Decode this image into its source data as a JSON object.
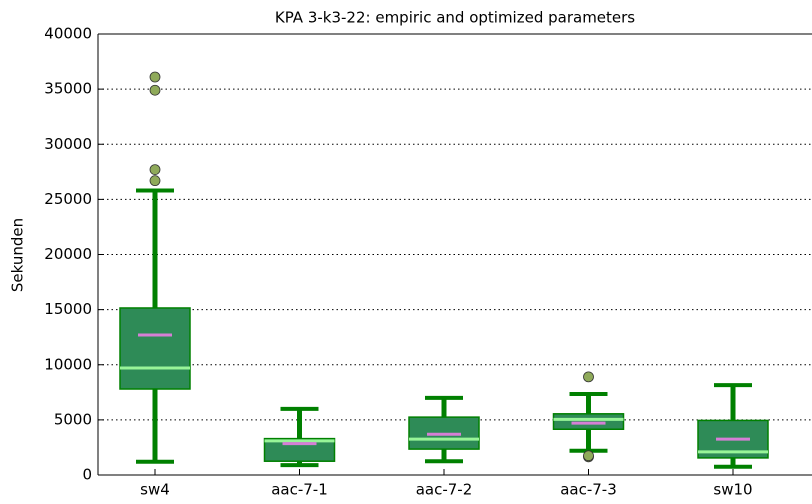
{
  "chart_data": {
    "type": "box",
    "title": "KPA 3-k3-22: empiric and optimized parameters",
    "ylabel": "Sekunden",
    "categories": [
      "sw4",
      "aac-7-1",
      "aac-7-2",
      "aac-7-3",
      "sw10"
    ],
    "boxes": [
      {
        "whislo": 1200,
        "q1": 7800,
        "med": 9700,
        "mean": 12700,
        "q3": 15150,
        "whishi": 25800,
        "fliers": [
          26700,
          27700,
          34900,
          36100
        ]
      },
      {
        "whislo": 900,
        "q1": 1250,
        "med": 3100,
        "mean": 2850,
        "q3": 3300,
        "whishi": 6000,
        "fliers": []
      },
      {
        "whislo": 1250,
        "q1": 2350,
        "med": 3250,
        "mean": 3700,
        "q3": 5250,
        "whishi": 7000,
        "fliers": []
      },
      {
        "whislo": 2200,
        "q1": 4150,
        "med": 5050,
        "mean": 4700,
        "q3": 5550,
        "whishi": 7350,
        "fliers": [
          1650,
          1750,
          8900
        ]
      },
      {
        "whislo": 750,
        "q1": 1550,
        "med": 2100,
        "mean": 3250,
        "q3": 4950,
        "whishi": 8150,
        "fliers": []
      }
    ],
    "ylim": [
      0,
      40000
    ],
    "yticks": [
      0,
      5000,
      10000,
      15000,
      20000,
      25000,
      30000,
      35000,
      40000
    ],
    "grid": true,
    "colors": {
      "box": "#2e8b57",
      "edge": "#008000",
      "whisker": "#008000",
      "median": "#98f598",
      "mean": "#d67fd6",
      "flier": "#8faa5a"
    }
  }
}
